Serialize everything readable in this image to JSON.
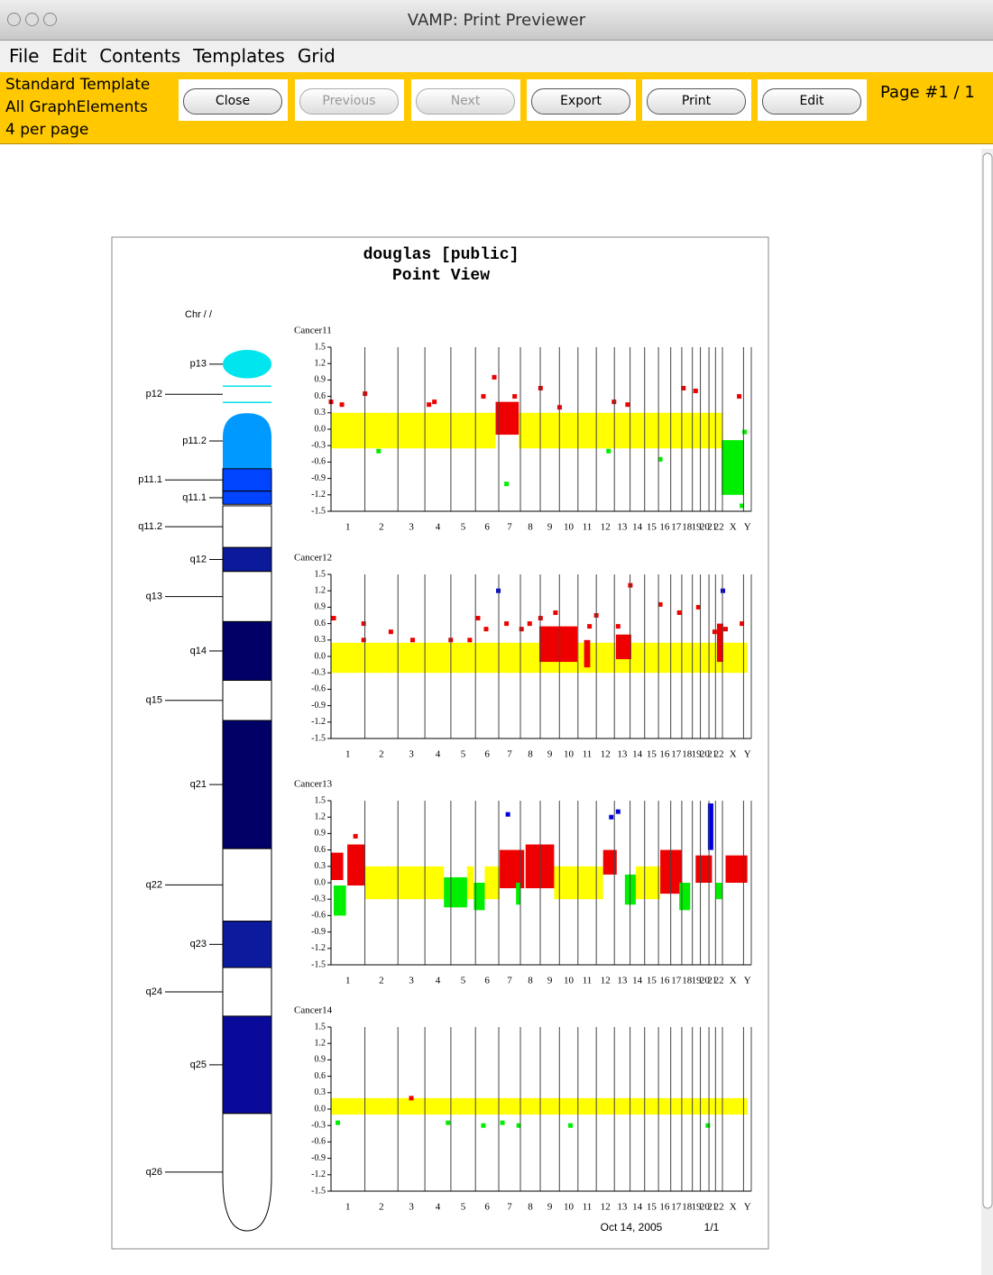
{
  "window": {
    "title": "VAMP: Print Previewer"
  },
  "menu": [
    "File",
    "Edit",
    "Contents",
    "Templates",
    "Grid"
  ],
  "toolbar": {
    "info": [
      "Standard Template",
      "All GraphElements",
      "4 per page"
    ],
    "buttons": [
      {
        "label": "Close",
        "enabled": true
      },
      {
        "label": "Previous",
        "enabled": false
      },
      {
        "label": "Next",
        "enabled": false
      },
      {
        "label": "Export",
        "enabled": true
      },
      {
        "label": "Print",
        "enabled": true
      },
      {
        "label": "Edit",
        "enabled": true
      }
    ],
    "page": "Page #1 / 1"
  },
  "document": {
    "title": "douglas [public]",
    "subtitle": "Point View",
    "footer_date": "Oct 14, 2005",
    "footer_page": "1/1"
  },
  "ideogram": {
    "label": "Chr / /",
    "ylim": [
      0,
      114.1
    ],
    "bands": [
      {
        "label": "p13",
        "start": 0,
        "end": 3.7,
        "color": "#00e5ee"
      },
      {
        "label": "p12",
        "start": 4.7,
        "end": 6.8,
        "color": "#00e5ee"
      },
      {
        "label": "p11.2",
        "start": 8.2,
        "end": 15.4,
        "color": "#0099ff"
      },
      {
        "label": "p11.1",
        "start": 15.4,
        "end": 18.3,
        "color": "#0044ff"
      },
      {
        "label": "q11.1",
        "start": 18.3,
        "end": 20,
        "color": "#0044ff"
      },
      {
        "label": "q11.2",
        "start": 20.2,
        "end": 25.6,
        "color": "#ffffff"
      },
      {
        "label": "q12",
        "start": 25.6,
        "end": 28.7,
        "color": "#0a1a9a"
      },
      {
        "label": "q13",
        "start": 28.7,
        "end": 35.2,
        "color": "#ffffff"
      },
      {
        "label": "q14",
        "start": 35.2,
        "end": 42.8,
        "color": "#000066"
      },
      {
        "label": "q15",
        "start": 42.8,
        "end": 48,
        "color": "#ffffff"
      },
      {
        "label": "q21",
        "start": 48,
        "end": 64.6,
        "color": "#000066"
      },
      {
        "label": "q22",
        "start": 64.6,
        "end": 74,
        "color": "#ffffff"
      },
      {
        "label": "q23",
        "start": 74,
        "end": 80,
        "color": "#0c1a9e"
      },
      {
        "label": "q24",
        "start": 80,
        "end": 86.3,
        "color": "#ffffff"
      },
      {
        "label": "q25",
        "start": 86.3,
        "end": 98.9,
        "color": "#0a0a9a"
      },
      {
        "label": "q26",
        "start": 98.9,
        "end": 114.1,
        "color": "#ffffff"
      }
    ]
  },
  "genome": {
    "chromosomes": [
      "1",
      "2",
      "3",
      "4",
      "5",
      "6",
      "7",
      "8",
      "9",
      "10",
      "11",
      "12",
      "13",
      "14",
      "15",
      "16",
      "17",
      "18",
      "19",
      "20",
      "21",
      "22",
      "X",
      "Y"
    ],
    "boundaries": [
      0,
      249,
      492,
      690,
      881,
      1062,
      1233,
      1392,
      1538,
      1679,
      1815,
      1950,
      2083,
      2198,
      2305,
      2407,
      2497,
      2578,
      2656,
      2715,
      2778,
      2826,
      2877,
      3032,
      3089
    ]
  },
  "chart_data": [
    {
      "type": "scatter",
      "title": "Cancer11",
      "xlim": [
        0,
        3089
      ],
      "ylim": [
        -1.5,
        1.5
      ],
      "yticks": [
        -1.5,
        -1.2,
        -0.9,
        -0.6,
        -0.3,
        {
          "value": 0,
          "label": "0.0"
        },
        0.3,
        0.6,
        0.9,
        1.2,
        1.5
      ],
      "segments": [
        {
          "x": [
            0,
            1210
          ],
          "y": [
            -0.35,
            0.3
          ],
          "color": "#ffff00"
        },
        {
          "x": [
            1380,
            2880
          ],
          "y": [
            -0.35,
            0.3
          ],
          "color": "#ffff00"
        },
        {
          "x": [
            1210,
            1380
          ],
          "y": [
            -0.1,
            0.5
          ],
          "color": "#ee0000"
        },
        {
          "x": [
            2870,
            3036
          ],
          "y": [
            -1.2,
            -0.2
          ],
          "color": "#00ee00"
        }
      ],
      "points": [
        {
          "x": [
            0,
            80,
            250,
            720,
            760,
            1120,
            1200,
            1350,
            1540,
            1680,
            2080,
            2180,
            2590,
            2680,
            3000
          ],
          "y": [
            0.5,
            0.45,
            0.65,
            0.45,
            0.5,
            0.6,
            0.95,
            0.6,
            0.75,
            0.4,
            0.5,
            0.45,
            0.75,
            0.7,
            0.6
          ],
          "color": "#ee0000"
        },
        {
          "x": [
            350,
            2040,
            2420,
            3040,
            1290,
            3020
          ],
          "y": [
            -0.4,
            -0.4,
            -0.55,
            -0.05,
            -1.0,
            -1.4
          ],
          "color": "#00ee00"
        }
      ]
    },
    {
      "type": "scatter",
      "title": "Cancer12",
      "xlim": [
        0,
        3089
      ],
      "ylim": [
        -1.5,
        1.5
      ],
      "yticks": [
        -1.5,
        -1.2,
        -0.9,
        -0.6,
        -0.3,
        {
          "value": 0,
          "label": "0.0"
        },
        0.3,
        0.6,
        0.9,
        1.2,
        1.5
      ],
      "segments": [
        {
          "x": [
            0,
            3060
          ],
          "y": [
            -0.3,
            0.25
          ],
          "color": "#ffff00"
        },
        {
          "x": [
            1531,
            1810
          ],
          "y": [
            -0.1,
            0.55
          ],
          "color": "#ee0000"
        },
        {
          "x": [
            1860,
            1905
          ],
          "y": [
            -0.2,
            0.3
          ],
          "color": "#ee0000"
        },
        {
          "x": [
            2094,
            2207
          ],
          "y": [
            -0.05,
            0.4
          ],
          "color": "#ee0000"
        },
        {
          "x": [
            2837,
            2883
          ],
          "y": [
            -0.1,
            0.6
          ],
          "color": "#ee0000"
        }
      ],
      "points": [
        {
          "x": [
            20,
            240,
            240,
            440,
            600,
            880,
            1020,
            1080,
            1140,
            1290,
            1400,
            1460,
            1540,
            1650,
            1900,
            1950,
            2110,
            2200,
            2420,
            2560,
            2700,
            2820,
            2900,
            3020
          ],
          "y": [
            0.7,
            0.6,
            0.3,
            0.45,
            0.3,
            0.3,
            0.3,
            0.7,
            0.5,
            0.6,
            0.5,
            0.6,
            0.7,
            0.8,
            0.55,
            0.75,
            0.55,
            1.3,
            0.95,
            0.8,
            0.9,
            0.45,
            0.5,
            0.6
          ],
          "color": "#ee0000"
        },
        {
          "x": [
            1230,
            2880
          ],
          "y": [
            1.2,
            1.2
          ],
          "color": "#0000dd"
        }
      ]
    },
    {
      "type": "scatter",
      "title": "Cancer13",
      "xlim": [
        0,
        3089
      ],
      "ylim": [
        -1.5,
        1.5
      ],
      "yticks": [
        -1.5,
        -1.2,
        -0.9,
        -0.6,
        -0.3,
        {
          "value": 0,
          "label": "0.0"
        },
        0.3,
        0.6,
        0.9,
        1.2,
        1.5
      ],
      "segments": [
        {
          "x": [
            250,
            830
          ],
          "y": [
            -0.3,
            0.3
          ],
          "color": "#ffff00"
        },
        {
          "x": [
            1000,
            1050
          ],
          "y": [
            -0.3,
            0.3
          ],
          "color": "#ffff00"
        },
        {
          "x": [
            1130,
            1240
          ],
          "y": [
            -0.3,
            0.3
          ],
          "color": "#ffff00"
        },
        {
          "x": [
            1640,
            2000
          ],
          "y": [
            -0.3,
            0.3
          ],
          "color": "#ffff00"
        },
        {
          "x": [
            2240,
            2420
          ],
          "y": [
            -0.3,
            0.3
          ],
          "color": "#ffff00"
        },
        {
          "x": [
            0,
            90
          ],
          "y": [
            0.05,
            0.55
          ],
          "color": "#ee0000"
        },
        {
          "x": [
            20,
            110
          ],
          "y": [
            -0.6,
            -0.05
          ],
          "color": "#00ee00"
        },
        {
          "x": [
            120,
            250
          ],
          "y": [
            -0.05,
            0.7
          ],
          "color": "#ee0000"
        },
        {
          "x": [
            830,
            1000
          ],
          "y": [
            -0.45,
            0.1
          ],
          "color": "#00ee00"
        },
        {
          "x": [
            1050,
            1130
          ],
          "y": [
            -0.5,
            0
          ],
          "color": "#00ee00"
        },
        {
          "x": [
            1240,
            1420
          ],
          "y": [
            -0.1,
            0.6
          ],
          "color": "#ee0000"
        },
        {
          "x": [
            1360,
            1390
          ],
          "y": [
            -0.4,
            0
          ],
          "color": "#00ee00"
        },
        {
          "x": [
            1430,
            1640
          ],
          "y": [
            -0.1,
            0.7
          ],
          "color": "#ee0000"
        },
        {
          "x": [
            2000,
            2100
          ],
          "y": [
            0.15,
            0.6
          ],
          "color": "#ee0000"
        },
        {
          "x": [
            2160,
            2240
          ],
          "y": [
            -0.4,
            0.15
          ],
          "color": "#00ee00"
        },
        {
          "x": [
            2420,
            2580
          ],
          "y": [
            -0.2,
            0.6
          ],
          "color": "#ee0000"
        },
        {
          "x": [
            2560,
            2640
          ],
          "y": [
            -0.5,
            0
          ],
          "color": "#00ee00"
        },
        {
          "x": [
            2680,
            2800
          ],
          "y": [
            0,
            0.5
          ],
          "color": "#ee0000"
        },
        {
          "x": [
            2770,
            2810
          ],
          "y": [
            0.6,
            1.45
          ],
          "color": "#0000dd"
        },
        {
          "x": [
            2830,
            2880
          ],
          "y": [
            -0.3,
            0
          ],
          "color": "#00ee00"
        },
        {
          "x": [
            2900,
            3060
          ],
          "y": [
            0,
            0.5
          ],
          "color": "#ee0000"
        }
      ],
      "points": [
        {
          "x": [
            1300,
            2060,
            2110
          ],
          "y": [
            1.25,
            1.2,
            1.3
          ],
          "color": "#0000dd"
        },
        {
          "x": [
            180
          ],
          "y": [
            0.85
          ],
          "color": "#ee0000"
        }
      ]
    },
    {
      "type": "scatter",
      "title": "Cancer14",
      "xlim": [
        0,
        3089
      ],
      "ylim": [
        -1.5,
        1.5
      ],
      "yticks": [
        -1.5,
        -1.2,
        -0.9,
        -0.6,
        -0.3,
        {
          "value": 0,
          "label": "0.0"
        },
        0.3,
        0.6,
        0.9,
        1.2,
        1.5
      ],
      "segments": [
        {
          "x": [
            0,
            3060
          ],
          "y": [
            -0.1,
            0.2
          ],
          "color": "#ffff00"
        }
      ],
      "points": [
        {
          "x": [
            590
          ],
          "y": [
            0.2
          ],
          "color": "#ee0000"
        },
        {
          "x": [
            50,
            860,
            1120,
            1260,
            1380,
            1760,
            2770
          ],
          "y": [
            -0.25,
            -0.25,
            -0.3,
            -0.25,
            -0.3,
            -0.3,
            -0.3
          ],
          "color": "#00ee00"
        }
      ]
    }
  ]
}
